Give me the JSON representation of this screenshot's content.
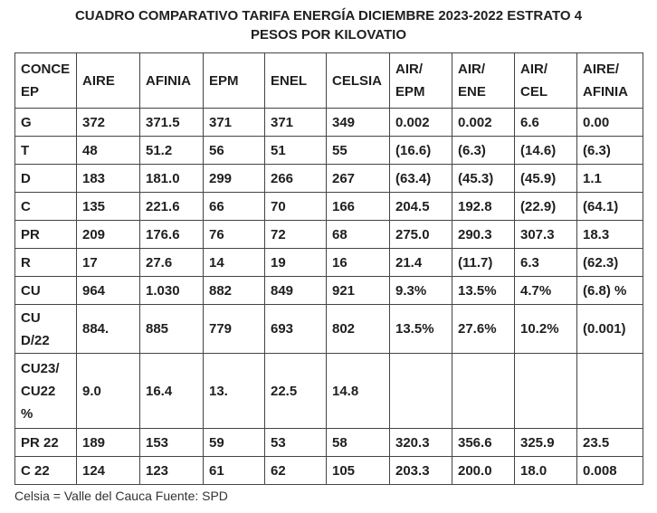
{
  "title": {
    "line1": "CUADRO COMPARATIVO TARIFA ENERGÍA DICIEMBRE 2023-2022 ESTRATO 4",
    "line2": "PESOS POR KILOVATIO"
  },
  "table": {
    "headers": [
      [
        "CONCE",
        "EP"
      ],
      [
        "AIRE"
      ],
      [
        "AFINIA"
      ],
      [
        "EPM"
      ],
      [
        "ENEL"
      ],
      [
        "CELSIA"
      ],
      [
        "AIR/",
        "EPM"
      ],
      [
        "AIR/",
        "ENE"
      ],
      [
        "AIR/",
        "CEL"
      ],
      [
        "AIRE/",
        "AFINIA"
      ]
    ],
    "rows": [
      [
        [
          "G"
        ],
        [
          "372"
        ],
        [
          "371.5"
        ],
        [
          "371"
        ],
        [
          "371"
        ],
        [
          "349"
        ],
        [
          "0.002"
        ],
        [
          "0.002"
        ],
        [
          "6.6"
        ],
        [
          "0.00"
        ]
      ],
      [
        [
          "T"
        ],
        [
          "48"
        ],
        [
          "51.2"
        ],
        [
          "56"
        ],
        [
          "51"
        ],
        [
          "55"
        ],
        [
          "(16.6)"
        ],
        [
          "(6.3)"
        ],
        [
          "(14.6)"
        ],
        [
          "(6.3)"
        ]
      ],
      [
        [
          "D"
        ],
        [
          "183"
        ],
        [
          "181.0"
        ],
        [
          "299"
        ],
        [
          "266"
        ],
        [
          "267"
        ],
        [
          "(63.4)"
        ],
        [
          "(45.3)"
        ],
        [
          "(45.9)"
        ],
        [
          "1.1"
        ]
      ],
      [
        [
          "C"
        ],
        [
          "135"
        ],
        [
          "221.6"
        ],
        [
          "66"
        ],
        [
          "70"
        ],
        [
          "166"
        ],
        [
          "204.5"
        ],
        [
          "192.8"
        ],
        [
          "(22.9)"
        ],
        [
          "(64.1)"
        ]
      ],
      [
        [
          "PR"
        ],
        [
          "209"
        ],
        [
          "176.6"
        ],
        [
          "76"
        ],
        [
          "72"
        ],
        [
          "68"
        ],
        [
          "275.0"
        ],
        [
          "290.3"
        ],
        [
          "307.3"
        ],
        [
          "18.3"
        ]
      ],
      [
        [
          "R"
        ],
        [
          "17"
        ],
        [
          "27.6"
        ],
        [
          "14"
        ],
        [
          "19"
        ],
        [
          "16"
        ],
        [
          "21.4"
        ],
        [
          "(11.7)"
        ],
        [
          "6.3"
        ],
        [
          "(62.3)"
        ]
      ],
      [
        [
          "CU"
        ],
        [
          "964"
        ],
        [
          "1.030"
        ],
        [
          "882"
        ],
        [
          "849"
        ],
        [
          "921"
        ],
        [
          "9.3%"
        ],
        [
          "13.5%"
        ],
        [
          "4.7%"
        ],
        [
          "(6.8) %"
        ]
      ],
      [
        [
          "CU",
          "D/22"
        ],
        [
          "884."
        ],
        [
          "885"
        ],
        [
          "779"
        ],
        [
          "693"
        ],
        [
          "802"
        ],
        [
          "13.5%"
        ],
        [
          "27.6%"
        ],
        [
          "10.2%"
        ],
        [
          "(0.001)"
        ]
      ],
      [
        [
          "CU23/",
          "CU22",
          "%"
        ],
        [
          "9.0"
        ],
        [
          "16.4"
        ],
        [
          "13."
        ],
        [
          "22.5"
        ],
        [
          "14.8"
        ],
        [
          ""
        ],
        [
          ""
        ],
        [
          ""
        ],
        [
          ""
        ]
      ],
      [
        [
          "PR 22"
        ],
        [
          "189"
        ],
        [
          "153"
        ],
        [
          "59"
        ],
        [
          "53"
        ],
        [
          "58"
        ],
        [
          "320.3"
        ],
        [
          "356.6"
        ],
        [
          "325.9"
        ],
        [
          "23.5"
        ]
      ],
      [
        [
          "C 22"
        ],
        [
          "124"
        ],
        [
          "123"
        ],
        [
          "61"
        ],
        [
          "62"
        ],
        [
          "105"
        ],
        [
          "203.3"
        ],
        [
          "200.0"
        ],
        [
          "18.0"
        ],
        [
          "0.008"
        ]
      ]
    ]
  },
  "footnote": "Celsia = Valle del Cauca Fuente: SPD"
}
